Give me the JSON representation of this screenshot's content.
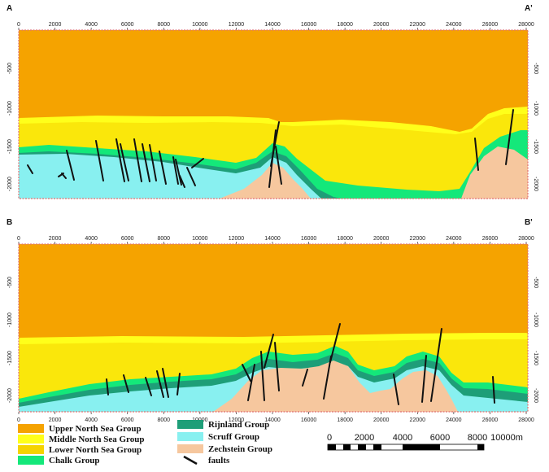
{
  "colors": {
    "upper_north_sea": "#f5a300",
    "middle_north_sea": "#ffff1a",
    "lower_north_sea": "#f5d300",
    "chalk": "#14e87a",
    "rijnland": "#1e9e78",
    "scruff": "#88f0f0",
    "zechstein": "#f6c79e",
    "fault": "#111111",
    "frame": "#e07070"
  },
  "section_a": {
    "label_left": "A",
    "label_right": "A'"
  },
  "section_b": {
    "label_left": "B",
    "label_right": "B'"
  },
  "x_ticks": [
    "0",
    "2000",
    "4000",
    "6000",
    "8000",
    "10000",
    "12000",
    "14000",
    "16000",
    "18000",
    "20000",
    "22000",
    "24000",
    "26000",
    "28000"
  ],
  "depth_ticks_left": [
    "-500",
    "-1000",
    "-1500",
    "-2000"
  ],
  "depth_ticks_right": [
    "-500",
    "-1000",
    "-1500",
    "-2000"
  ],
  "legend": [
    {
      "label": "Upper North Sea Group",
      "color_key": "upper_north_sea",
      "icon": "swatch"
    },
    {
      "label": "Middle North Sea Group",
      "color_key": "middle_north_sea",
      "icon": "swatch"
    },
    {
      "label": "Lower North Sea Group",
      "color_key": "lower_north_sea",
      "icon": "swatch"
    },
    {
      "label": "Chalk Group",
      "color_key": "chalk",
      "icon": "swatch"
    },
    {
      "label": "Rijnland Group",
      "color_key": "rijnland",
      "icon": "swatch"
    },
    {
      "label": "Scruff Group",
      "color_key": "scruff",
      "icon": "swatch"
    },
    {
      "label": "Zechstein Group",
      "color_key": "zechstein",
      "icon": "swatch"
    },
    {
      "label": "faults",
      "color_key": "fault",
      "icon": "fault-line-icon"
    }
  ],
  "scale_bar": {
    "labels": [
      "0",
      "2000",
      "4000",
      "6000",
      "8000",
      "10000m"
    ]
  }
}
